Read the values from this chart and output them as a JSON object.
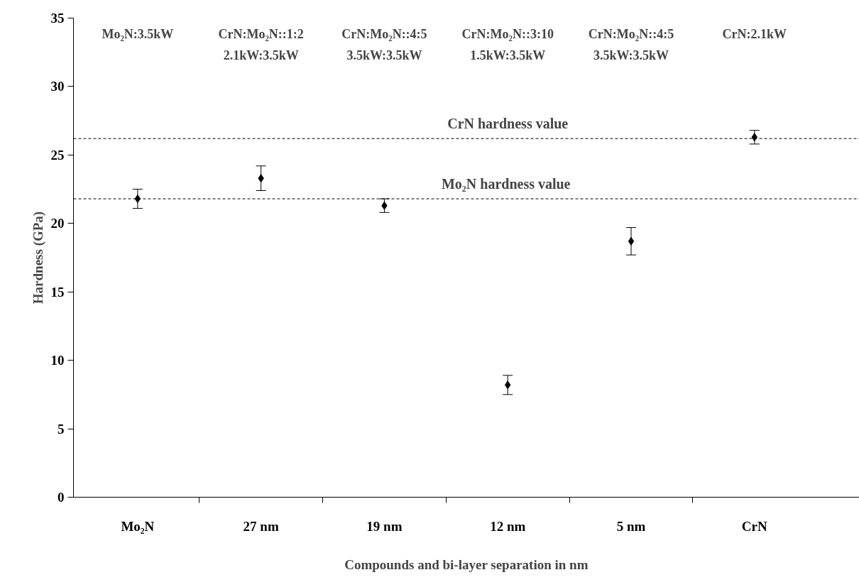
{
  "chart_data": {
    "type": "scatter",
    "xlabel": "Compounds and bi-layer separation in nm",
    "ylabel": "Hardness (GPa)",
    "categories": [
      "Mo₂N",
      "27 nm",
      "19 nm",
      "12 nm",
      "5 nm",
      "CrN"
    ],
    "series": [
      {
        "color": "#000000",
        "values": [
          21.8,
          23.3,
          21.3,
          8.2,
          18.7,
          26.3
        ],
        "errors": [
          0.7,
          0.9,
          0.5,
          0.7,
          1.0,
          0.5
        ]
      }
    ],
    "ylim": [
      0,
      35
    ],
    "yticks": [
      0,
      5,
      10,
      15,
      20,
      25,
      30,
      35
    ],
    "ref_lines": [
      {
        "axis": "y",
        "value": 26.2,
        "label": "CrN hardness value",
        "color": "#000000",
        "line_style": "dashed"
      },
      {
        "axis": "y",
        "value": 21.8,
        "label": "Mo₂N  hardness value",
        "color": "#000000",
        "line_style": "dashed"
      }
    ],
    "annotations": [
      "Mo₂N:3.5kW",
      "CrN:Mo₂N::1:2\n2.1kW:3.5kW",
      "CrN:Mo₂N::4:5\n3.5kW:3.5kW",
      "CrN:Mo₂N::3:10\n1.5kW:3.5kW",
      "CrN:Mo₂N::4:5\n3.5kW:3.5kW",
      "CrN:2.1kW"
    ],
    "marker": "diamond",
    "grid": false
  }
}
